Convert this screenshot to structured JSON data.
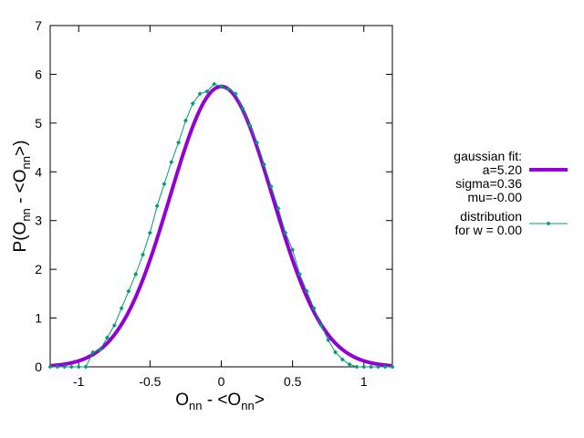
{
  "chart_data": {
    "type": "line",
    "title": "",
    "xlabel": {
      "main": "O",
      "sub": "nn",
      "mid": " - <O",
      "sub2": "nn",
      "end": ">"
    },
    "ylabel": {
      "main": "P(O",
      "sub": "nn",
      "mid": " - <O",
      "sub2": "nn",
      "end": ">)"
    },
    "xlim": [
      -1.2,
      1.2
    ],
    "ylim": [
      0,
      7
    ],
    "xticks": [
      -1,
      -0.5,
      0,
      0.5,
      1
    ],
    "xtick_labels": [
      "-1",
      "-0.5",
      "0",
      "0.5",
      "1"
    ],
    "yticks": [
      0,
      1,
      2,
      3,
      4,
      5,
      6,
      7
    ],
    "ytick_labels": [
      "0",
      "1",
      "2",
      "3",
      "4",
      "5",
      "6",
      "7"
    ],
    "grid": false,
    "legend_placement": "right, outside plot",
    "series": [
      {
        "name": "gaussian fit:",
        "legend_lines": [
          "gaussian fit:",
          "a=5.20",
          "sigma=0.36",
          "mu=-0.00"
        ],
        "color": "#9400d3",
        "style": "thick line",
        "params": {
          "a": 5.2,
          "sigma": 0.36,
          "mu": 0.0,
          "peak": 5.75
        }
      },
      {
        "name": "distribution",
        "legend_lines": [
          "distribution",
          "for w = 0.00"
        ],
        "color": "#009e73",
        "style": "line with diamond points",
        "x": [
          -1.2,
          -1.15,
          -1.1,
          -1.05,
          -1.0,
          -0.95,
          -0.9,
          -0.85,
          -0.8,
          -0.75,
          -0.7,
          -0.65,
          -0.6,
          -0.55,
          -0.5,
          -0.45,
          -0.4,
          -0.35,
          -0.3,
          -0.25,
          -0.2,
          -0.15,
          -0.1,
          -0.05,
          0.0,
          0.05,
          0.1,
          0.15,
          0.2,
          0.25,
          0.3,
          0.35,
          0.4,
          0.45,
          0.5,
          0.55,
          0.6,
          0.65,
          0.7,
          0.75,
          0.8,
          0.85,
          0.9,
          0.95,
          1.0,
          1.05,
          1.1,
          1.15,
          1.2
        ],
        "y": [
          0.0,
          0.0,
          0.0,
          0.0,
          0.0,
          0.0,
          0.3,
          0.35,
          0.6,
          0.85,
          1.2,
          1.55,
          1.9,
          2.3,
          2.75,
          3.3,
          3.75,
          4.2,
          4.6,
          5.05,
          5.4,
          5.6,
          5.65,
          5.8,
          5.75,
          5.7,
          5.6,
          5.3,
          4.95,
          4.6,
          4.15,
          3.7,
          3.25,
          2.75,
          2.4,
          1.9,
          1.55,
          1.2,
          0.85,
          0.55,
          0.3,
          0.15,
          0.05,
          0.0,
          0.0,
          0.0,
          0.0,
          0.0,
          0.0
        ]
      }
    ]
  }
}
